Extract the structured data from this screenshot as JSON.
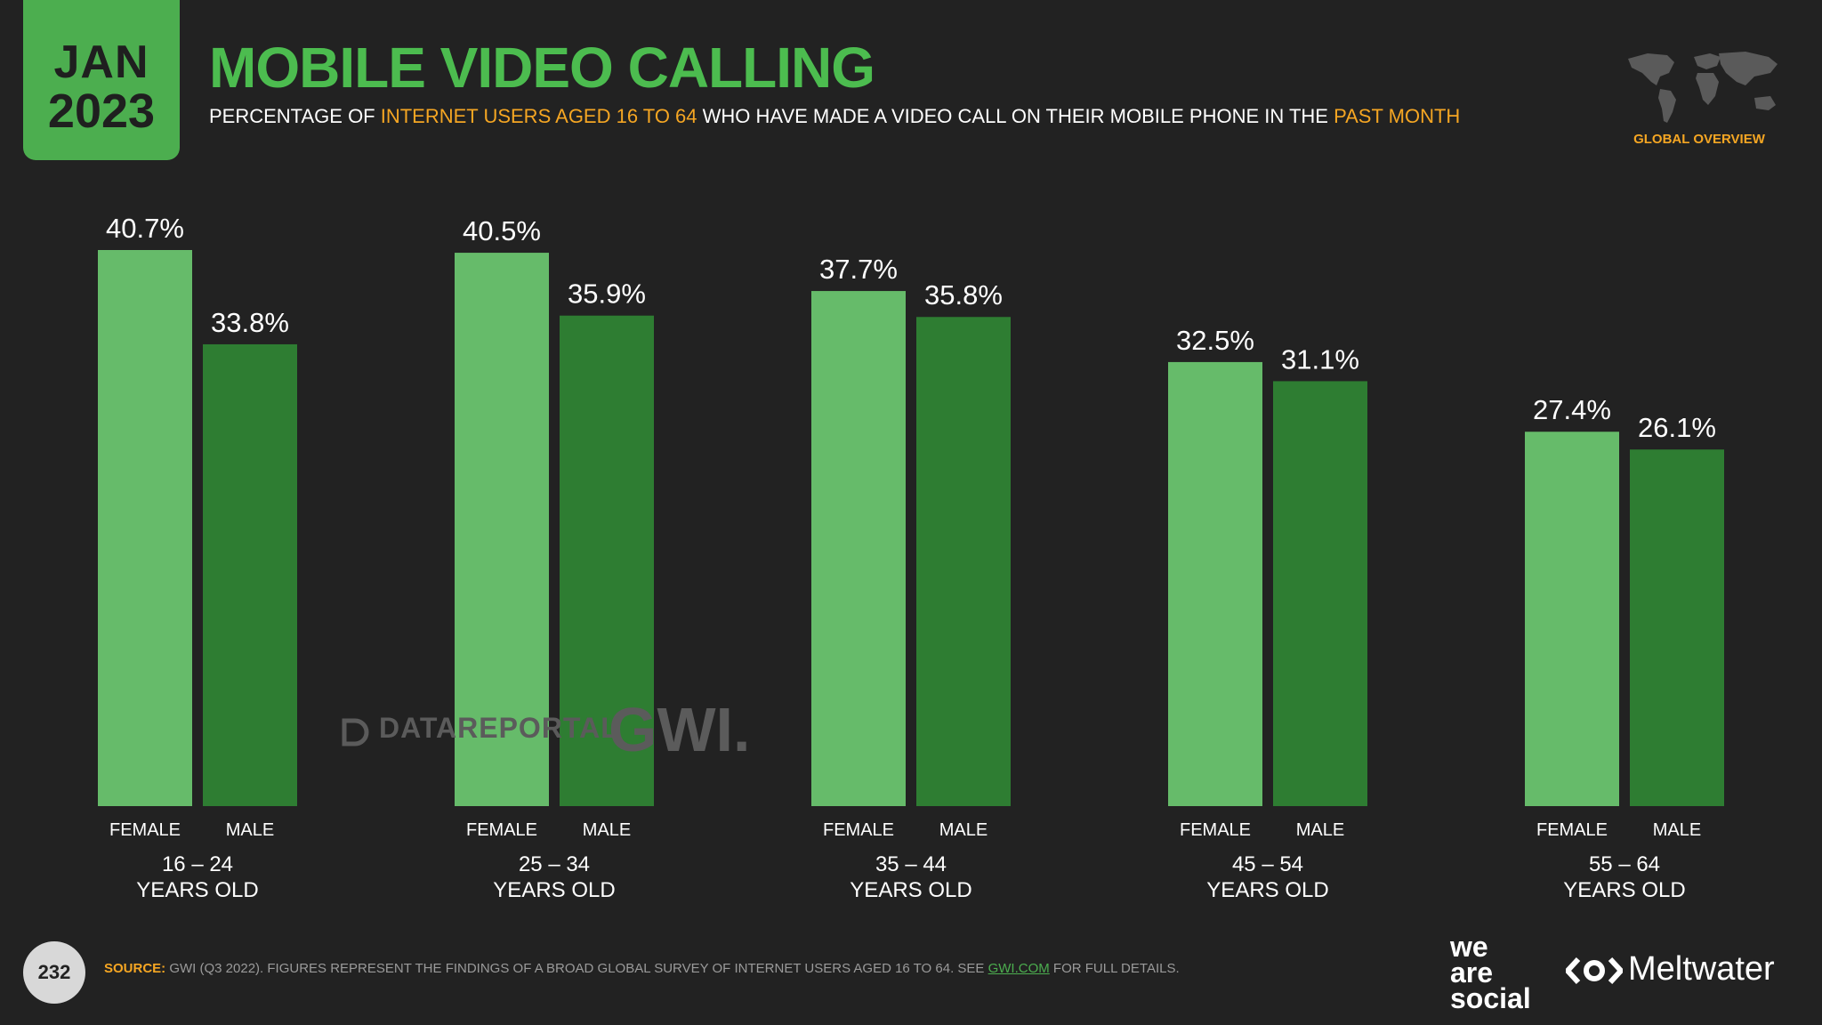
{
  "header": {
    "month": "JAN",
    "year": "2023",
    "title": "MOBILE VIDEO CALLING",
    "subtitle": {
      "part1": "PERCENTAGE OF ",
      "highlight1": "INTERNET USERS AGED 16 TO 64",
      "part2": " WHO HAVE MADE A VIDEO CALL ON THEIR MOBILE PHONE IN THE ",
      "highlight2": "PAST MONTH"
    },
    "overview_label": "GLOBAL OVERVIEW"
  },
  "colors": {
    "background": "#222222",
    "female": "#66bb6a",
    "male": "#2e7d32",
    "accent_orange": "#f5a623",
    "title_green": "#4cbc4f"
  },
  "chart_data": {
    "type": "bar",
    "categories": [
      {
        "top": "16 – 24",
        "bottom": "YEARS OLD"
      },
      {
        "top": "25 – 34",
        "bottom": "YEARS OLD"
      },
      {
        "top": "35 – 44",
        "bottom": "YEARS OLD"
      },
      {
        "top": "45 – 54",
        "bottom": "YEARS OLD"
      },
      {
        "top": "55 – 64",
        "bottom": "YEARS OLD"
      }
    ],
    "series": [
      {
        "name": "FEMALE",
        "values": [
          40.7,
          40.5,
          37.7,
          32.5,
          27.4
        ],
        "labels": [
          "40.7%",
          "40.5%",
          "37.7%",
          "32.5%",
          "27.4%"
        ]
      },
      {
        "name": "MALE",
        "values": [
          33.8,
          35.9,
          35.8,
          31.1,
          26.1
        ],
        "labels": [
          "33.8%",
          "35.9%",
          "35.8%",
          "31.1%",
          "26.1%"
        ]
      }
    ],
    "ylim": [
      0,
      40.7
    ],
    "grid": false,
    "legend": "none"
  },
  "watermarks": {
    "datareportal": "DATAREPORTAL",
    "gwi": "GWI."
  },
  "footer": {
    "page_number": "232",
    "source_label": "SOURCE:",
    "source_text": " GWI (Q3 2022). FIGURES REPRESENT THE FINDINGS OF A BROAD GLOBAL SURVEY OF INTERNET USERS AGED 16 TO 64. SEE ",
    "source_link": "GWI.COM",
    "source_end": " FOR FULL DETAILS.",
    "logo1": [
      "we",
      "are",
      "social"
    ],
    "logo2": "Meltwater"
  }
}
